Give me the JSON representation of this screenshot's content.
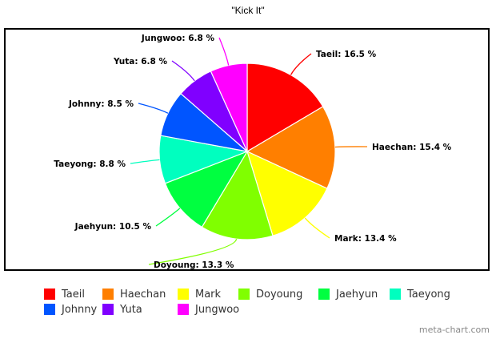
{
  "chart_data": {
    "type": "pie",
    "title": "\"Kick It\"",
    "legend_position": "bottom",
    "slices": [
      {
        "name": "Taeil",
        "value": 16.5,
        "label": "Taeil: 16.5 %",
        "color": "#ff0000"
      },
      {
        "name": "Haechan",
        "value": 15.4,
        "label": "Haechan: 15.4 %",
        "color": "#ff7f00"
      },
      {
        "name": "Mark",
        "value": 13.4,
        "label": "Mark: 13.4 %",
        "color": "#ffff00"
      },
      {
        "name": "Doyoung",
        "value": 13.3,
        "label": "Doyoung: 13.3 %",
        "color": "#80ff00"
      },
      {
        "name": "Jaehyun",
        "value": 10.5,
        "label": "Jaehyun: 10.5 %",
        "color": "#00ff40"
      },
      {
        "name": "Taeyong",
        "value": 8.8,
        "label": "Taeyong: 8.8 %",
        "color": "#00ffbf"
      },
      {
        "name": "Johnny",
        "value": 8.5,
        "label": "Johnny: 8.5 %",
        "color": "#0055ff"
      },
      {
        "name": "Yuta",
        "value": 6.8,
        "label": "Yuta: 6.8 %",
        "color": "#8000ff"
      },
      {
        "name": "Jungwoo",
        "value": 6.8,
        "label": "Jungwoo: 6.8 %",
        "color": "#ff00ff"
      }
    ]
  },
  "watermark": "meta-chart.com"
}
